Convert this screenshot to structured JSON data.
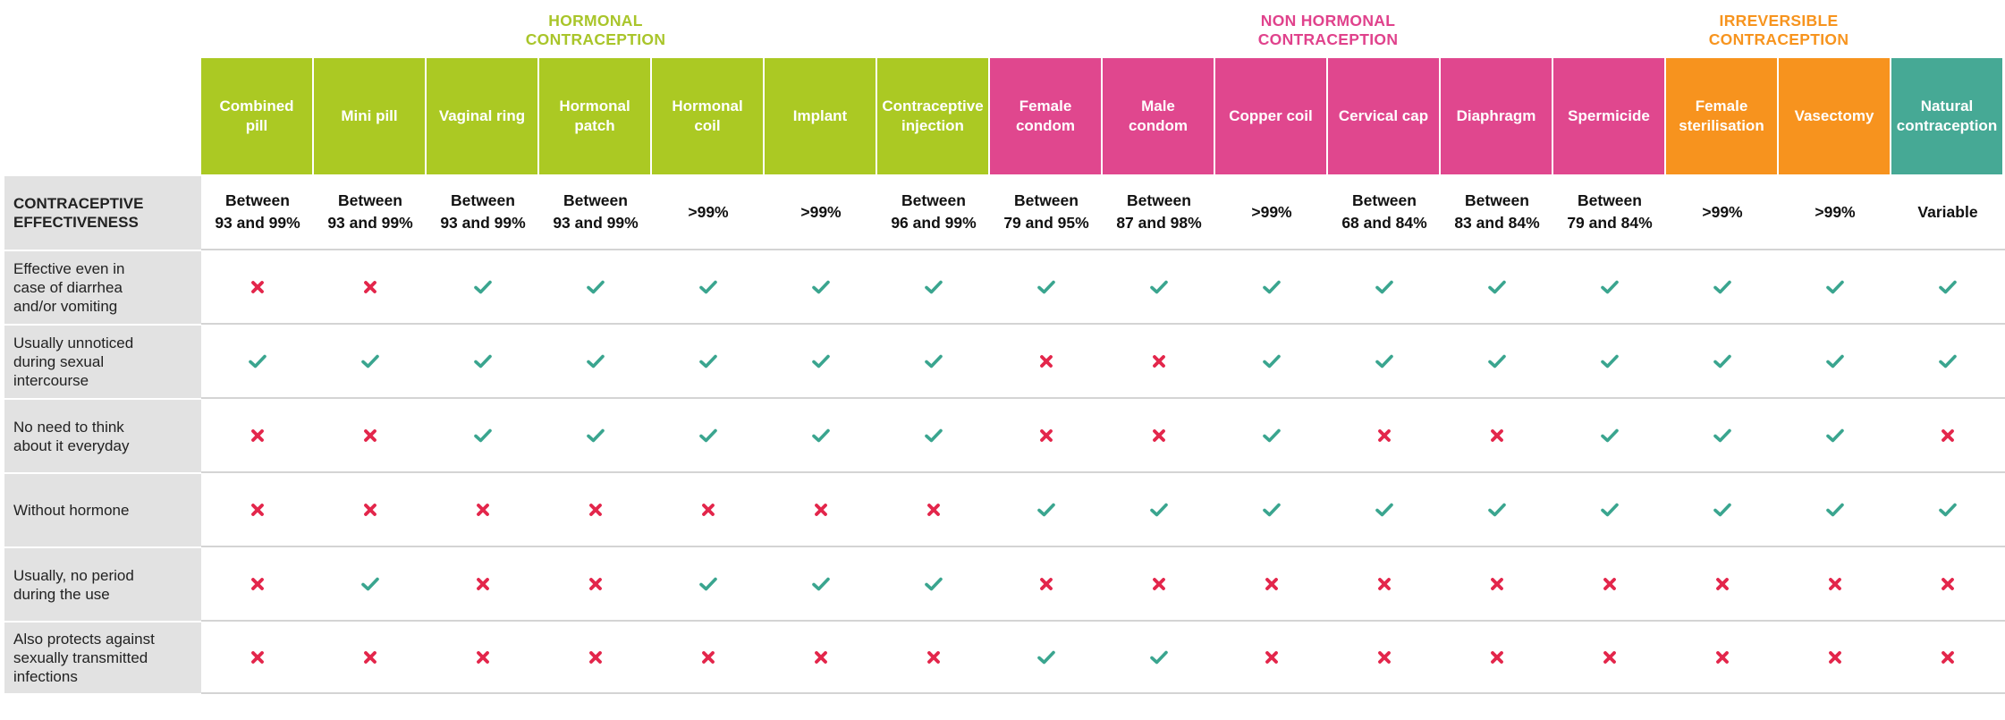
{
  "groups": [
    {
      "line1": "HORMONAL",
      "line2": "CONTRACEPTION",
      "color": "#a9c52a"
    },
    {
      "line1": "NON HORMONAL",
      "line2": "CONTRACEPTION",
      "color": "#e0428c"
    },
    {
      "line1": "IRREVERSIBLE",
      "line2": "CONTRACEPTION",
      "color": "#f7941e"
    }
  ],
  "colors": {
    "hormonal": "#abc923",
    "non_hormonal": "#e0478e",
    "irreversible": "#f7931e",
    "natural": "#46a995",
    "check": "#3aa58f",
    "cross": "#e3264b"
  },
  "methods": [
    {
      "line1": "Combined",
      "line2": "pill",
      "category": "hormonal"
    },
    {
      "line1": "Mini pill",
      "line2": "",
      "category": "hormonal"
    },
    {
      "line1": "Vaginal ring",
      "line2": "",
      "category": "hormonal"
    },
    {
      "line1": "Hormonal",
      "line2": "patch",
      "category": "hormonal"
    },
    {
      "line1": "Hormonal",
      "line2": "coil",
      "category": "hormonal"
    },
    {
      "line1": "Implant",
      "line2": "",
      "category": "hormonal"
    },
    {
      "line1": "Contraceptive",
      "line2": "injection",
      "category": "hormonal"
    },
    {
      "line1": "Female",
      "line2": "condom",
      "category": "non_hormonal"
    },
    {
      "line1": "Male",
      "line2": "condom",
      "category": "non_hormonal"
    },
    {
      "line1": "Copper coil",
      "line2": "",
      "category": "non_hormonal"
    },
    {
      "line1": "Cervical cap",
      "line2": "",
      "category": "non_hormonal"
    },
    {
      "line1": "Diaphragm",
      "line2": "",
      "category": "non_hormonal"
    },
    {
      "line1": "Spermicide",
      "line2": "",
      "category": "non_hormonal"
    },
    {
      "line1": "Female",
      "line2": "sterilisation",
      "category": "irreversible"
    },
    {
      "line1": "Vasectomy",
      "line2": "",
      "category": "irreversible"
    },
    {
      "line1": "Natural",
      "line2": "contraception",
      "category": "natural"
    }
  ],
  "effectiveness": {
    "label_line1": "CONTRACEPTIVE",
    "label_line2": "EFFECTIVENESS",
    "values": [
      {
        "line1": "Between",
        "line2": "93 and 99%"
      },
      {
        "line1": "Between",
        "line2": "93 and 99%"
      },
      {
        "line1": "Between",
        "line2": "93 and 99%"
      },
      {
        "line1": "Between",
        "line2": "93 and 99%"
      },
      {
        "line1": ">99%",
        "line2": ""
      },
      {
        "line1": ">99%",
        "line2": ""
      },
      {
        "line1": "Between",
        "line2": "96 and 99%"
      },
      {
        "line1": "Between",
        "line2": "79 and 95%"
      },
      {
        "line1": "Between",
        "line2": "87 and 98%"
      },
      {
        "line1": ">99%",
        "line2": ""
      },
      {
        "line1": "Between",
        "line2": "68 and 84%"
      },
      {
        "line1": "Between",
        "line2": "83 and 84%"
      },
      {
        "line1": "Between",
        "line2": "79 and 84%"
      },
      {
        "line1": ">99%",
        "line2": ""
      },
      {
        "line1": ">99%",
        "line2": ""
      },
      {
        "line1": "Variable",
        "line2": ""
      }
    ]
  },
  "criteria": [
    {
      "lines": [
        "Effective even in",
        "case of diarrhea",
        "and/or vomiting"
      ],
      "marks": [
        false,
        false,
        true,
        true,
        true,
        true,
        true,
        true,
        true,
        true,
        true,
        true,
        true,
        true,
        true,
        true
      ]
    },
    {
      "lines": [
        "Usually unnoticed",
        "during sexual",
        "intercourse"
      ],
      "marks": [
        true,
        true,
        true,
        true,
        true,
        true,
        true,
        false,
        false,
        true,
        true,
        true,
        true,
        true,
        true,
        true
      ]
    },
    {
      "lines": [
        "No need to think",
        "about it everyday"
      ],
      "marks": [
        false,
        false,
        true,
        true,
        true,
        true,
        true,
        false,
        false,
        true,
        false,
        false,
        true,
        true,
        true,
        false
      ]
    },
    {
      "lines": [
        "Without hormone"
      ],
      "marks": [
        false,
        false,
        false,
        false,
        false,
        false,
        false,
        true,
        true,
        true,
        true,
        true,
        true,
        true,
        true,
        true
      ]
    },
    {
      "lines": [
        "Usually, no period",
        "during the use"
      ],
      "marks": [
        false,
        true,
        false,
        false,
        true,
        true,
        true,
        false,
        false,
        false,
        false,
        false,
        false,
        false,
        false,
        false
      ]
    },
    {
      "lines": [
        "Also protects against",
        "sexually transmitted",
        "infections"
      ],
      "marks": [
        false,
        false,
        false,
        false,
        false,
        false,
        false,
        true,
        true,
        false,
        false,
        false,
        false,
        false,
        false,
        false
      ]
    }
  ]
}
